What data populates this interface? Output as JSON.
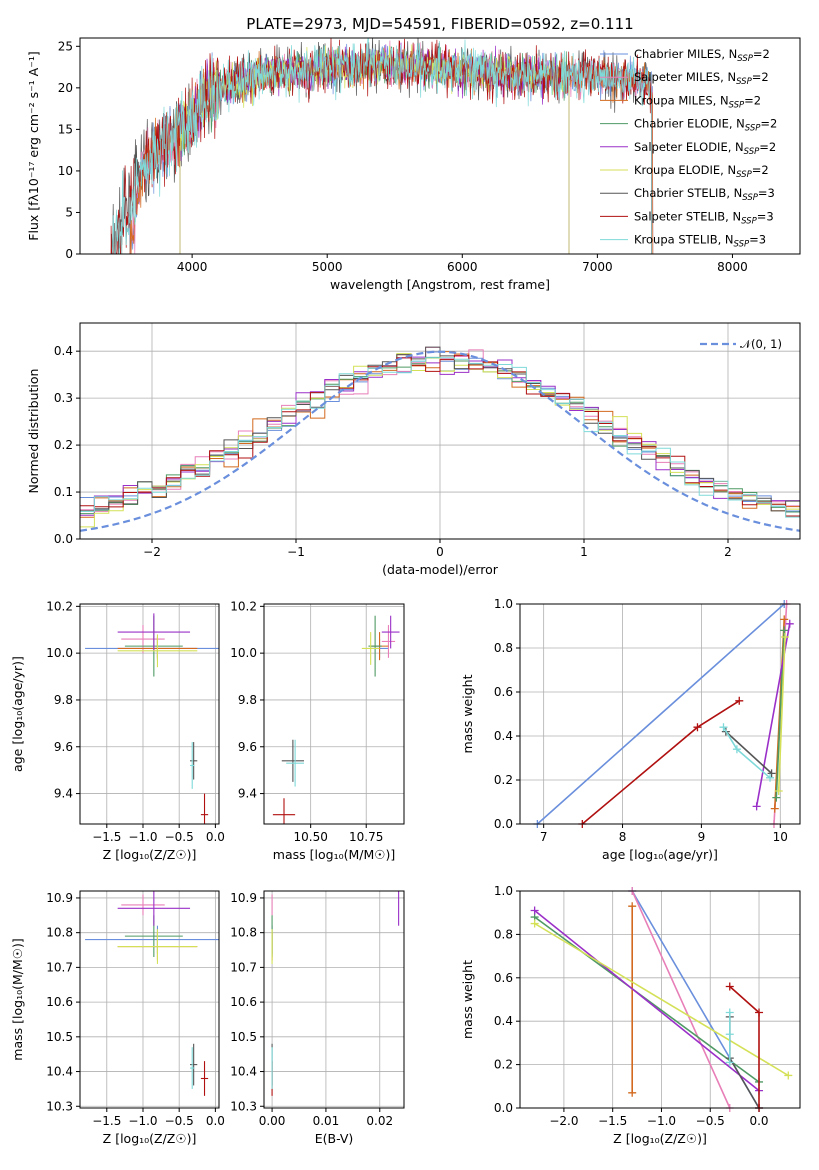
{
  "page_title": "PLATE=2973, MJD=54591, FIBERID=0592, z=0.111",
  "colors": {
    "Chabrier MILES": "#6a8fdc",
    "Salpeter MILES": "#e87fb8",
    "Kroupa MILES": "#d2691e",
    "Chabrier ELODIE": "#4f9a64",
    "Salpeter ELODIE": "#9b30c8",
    "Kroupa ELODIE": "#d4e157",
    "Chabrier STELIB": "#555555",
    "Salpeter STELIB": "#b01010",
    "Kroupa STELIB": "#7fd9d9"
  },
  "chart_data": [
    {
      "id": "spectrum",
      "type": "line",
      "title": "PLATE=2973, MJD=54591, FIBERID=0592, z=0.111",
      "xlabel": "wavelength [Angstrom, rest frame]",
      "ylabel": "Flux [fλ10⁻¹⁷ erg cm⁻² s⁻¹ A⁻¹]",
      "xlim": [
        3170,
        8500
      ],
      "ylim": [
        0,
        26
      ],
      "xticks": [
        4000,
        5000,
        6000,
        7000,
        8000
      ],
      "yticks": [
        0,
        5,
        10,
        15,
        20,
        25
      ],
      "grid": false,
      "legend": "top-right",
      "legend_entries": [
        "Chabrier MILES, N_SSP=2",
        "Salpeter MILES, N_SSP=2",
        "Kroupa MILES, N_SSP=2",
        "Chabrier ELODIE, N_SSP=2",
        "Salpeter ELODIE, N_SSP=2",
        "Kroupa ELODIE, N_SSP=2",
        "Chabrier STELIB, N_SSP=3",
        "Salpeter STELIB, N_SSP=3",
        "Kroupa STELIB, N_SSP=3"
      ],
      "x": [
        3630,
        3700,
        3800,
        3900,
        4000,
        4100,
        4300,
        4500,
        4700,
        5000,
        5200,
        5400,
        5600,
        5800,
        6000,
        6200,
        6400,
        6600,
        6800,
        7000,
        7200,
        7400
      ],
      "y": [
        10.5,
        11.5,
        13.5,
        14.5,
        16.5,
        19.0,
        20.5,
        21.5,
        22.0,
        22.5,
        22.5,
        23.0,
        22.5,
        22.5,
        22.0,
        22.0,
        21.5,
        21.5,
        21.5,
        21.5,
        21.0,
        20.5
      ],
      "model_ranges": {
        "Chabrier MILES": [
          3540,
          7410
        ],
        "Salpeter MILES": [
          3540,
          7410
        ],
        "Kroupa MILES": [
          3540,
          7410
        ],
        "Chabrier ELODIE": [
          3910,
          6790
        ],
        "Salpeter ELODIE": [
          3910,
          6790
        ],
        "Kroupa ELODIE": [
          3910,
          6790
        ],
        "Chabrier STELIB": [
          3400,
          7400
        ],
        "Salpeter STELIB": [
          3400,
          7400
        ],
        "Kroupa STELIB": [
          3400,
          7400
        ]
      }
    },
    {
      "id": "residuals",
      "type": "histogram",
      "xlabel": "(data-model)/error",
      "ylabel": "Normed distribution",
      "xlim": [
        -2.5,
        2.5
      ],
      "ylim": [
        0,
        0.46
      ],
      "xticks": [
        -2,
        -1,
        0,
        1,
        2
      ],
      "yticks": [
        0.0,
        0.1,
        0.2,
        0.3,
        0.4
      ],
      "grid": true,
      "legend": "top-right",
      "reference_curve": "𝒩(0, 1)",
      "bin_width": 0.1
    },
    {
      "id": "age-vs-Z",
      "type": "errorbar",
      "xlabel": "Z [log₁₀(Z/Z☉)]",
      "ylabel": "age  [log₁₀(age/yr)]",
      "xlim": [
        -1.87,
        0.05
      ],
      "ylim": [
        9.27,
        10.21
      ],
      "xticks": [
        -1.5,
        -1.0,
        -0.5,
        0.0
      ],
      "xticklabels": [
        "−1.5",
        "−1.0",
        "−0.5",
        "0.0"
      ],
      "yticks": [
        9.4,
        9.6,
        9.8,
        10.0,
        10.2
      ],
      "points": [
        {
          "model": "Chabrier MILES",
          "x": -0.8,
          "xerr": 1.0,
          "y": 10.02,
          "yerr": 0.04
        },
        {
          "model": "Salpeter MILES",
          "x": -1.0,
          "xerr": 0.3,
          "y": 10.06,
          "yerr": 0.06
        },
        {
          "model": "Kroupa MILES",
          "x": -0.8,
          "xerr": 0.55,
          "y": 10.02,
          "yerr": 0.05
        },
        {
          "model": "Chabrier ELODIE",
          "x": -0.85,
          "xerr": 0.4,
          "y": 10.03,
          "yerr": 0.13
        },
        {
          "model": "Salpeter ELODIE",
          "x": -0.85,
          "xerr": 0.5,
          "y": 10.09,
          "yerr": 0.08
        },
        {
          "model": "Kroupa ELODIE",
          "x": -0.8,
          "xerr": 0.55,
          "y": 10.01,
          "yerr": 0.07
        },
        {
          "model": "Chabrier STELIB",
          "x": -0.3,
          "xerr": 0.05,
          "y": 9.54,
          "yerr": 0.08
        },
        {
          "model": "Salpeter STELIB",
          "x": -0.15,
          "xerr": 0.05,
          "y": 9.31,
          "yerr": 0.09
        },
        {
          "model": "Kroupa STELIB",
          "x": -0.32,
          "xerr": 0.03,
          "y": 9.52,
          "yerr": 0.1
        }
      ]
    },
    {
      "id": "age-vs-mass",
      "type": "errorbar",
      "xlabel": "mass [log₁₀(M/M☉)]",
      "ylabel": "",
      "xlim": [
        10.29,
        10.92
      ],
      "ylim": [
        9.27,
        10.21
      ],
      "xticks": [
        10.5,
        10.75
      ],
      "xticklabels": [
        "10.50",
        "10.75"
      ],
      "yticks": [
        9.4,
        9.6,
        9.8,
        10.0,
        10.2
      ],
      "points": [
        {
          "model": "Chabrier MILES",
          "x": 10.81,
          "xerr": 0.04,
          "y": 10.02,
          "yerr": 0.04
        },
        {
          "model": "Salpeter MILES",
          "x": 10.85,
          "xerr": 0.03,
          "y": 10.05,
          "yerr": 0.07
        },
        {
          "model": "Kroupa MILES",
          "x": 10.81,
          "xerr": 0.04,
          "y": 10.03,
          "yerr": 0.06
        },
        {
          "model": "Chabrier ELODIE",
          "x": 10.79,
          "xerr": 0.03,
          "y": 10.03,
          "yerr": 0.13
        },
        {
          "model": "Salpeter ELODIE",
          "x": 10.86,
          "xerr": 0.04,
          "y": 10.09,
          "yerr": 0.07
        },
        {
          "model": "Kroupa ELODIE",
          "x": 10.77,
          "xerr": 0.04,
          "y": 10.02,
          "yerr": 0.07
        },
        {
          "model": "Chabrier STELIB",
          "x": 10.42,
          "xerr": 0.05,
          "y": 9.54,
          "yerr": 0.09
        },
        {
          "model": "Salpeter STELIB",
          "x": 10.38,
          "xerr": 0.05,
          "y": 9.31,
          "yerr": 0.07
        },
        {
          "model": "Kroupa STELIB",
          "x": 10.43,
          "xerr": 0.04,
          "y": 9.53,
          "yerr": 0.1
        }
      ]
    },
    {
      "id": "massweight-vs-age",
      "type": "line",
      "xlabel": "age  [log₁₀(age/yr)]",
      "ylabel": "mass weight",
      "xlim": [
        6.7,
        10.25
      ],
      "ylim": [
        0,
        1
      ],
      "xticks": [
        7,
        8,
        9,
        10
      ],
      "yticks": [
        0.0,
        0.2,
        0.4,
        0.6,
        0.8,
        1.0
      ],
      "series": [
        {
          "model": "Chabrier MILES",
          "x": [
            6.92,
            10.05
          ],
          "y": [
            0.0,
            1.0
          ]
        },
        {
          "model": "Salpeter MILES",
          "x": [
            9.92,
            10.08
          ],
          "y": [
            0.0,
            1.0
          ]
        },
        {
          "model": "Kroupa MILES",
          "x": [
            9.93,
            10.05
          ],
          "y": [
            0.07,
            0.93
          ]
        },
        {
          "model": "Chabrier ELODIE",
          "x": [
            9.95,
            10.05
          ],
          "y": [
            0.12,
            0.88
          ]
        },
        {
          "model": "Salpeter ELODIE",
          "x": [
            9.7,
            10.12
          ],
          "y": [
            0.08,
            0.91
          ]
        },
        {
          "model": "Kroupa ELODIE",
          "x": [
            9.98,
            10.06
          ],
          "y": [
            0.15,
            0.85
          ]
        },
        {
          "model": "Chabrier STELIB",
          "x": [
            9.31,
            9.89
          ],
          "y": [
            0.42,
            0.23
          ]
        },
        {
          "model": "Salpeter STELIB",
          "x": [
            7.49,
            8.95,
            9.48
          ],
          "y": [
            0.0,
            0.44,
            0.56
          ]
        },
        {
          "model": "Kroupa STELIB",
          "x": [
            9.28,
            9.45,
            9.87
          ],
          "y": [
            0.44,
            0.34,
            0.21
          ]
        }
      ]
    },
    {
      "id": "mass-vs-Z",
      "type": "errorbar",
      "xlabel": "Z [log₁₀(Z/Z☉)]",
      "ylabel": "mass [log₁₀(M/M☉)]",
      "xlim": [
        -1.87,
        0.05
      ],
      "ylim": [
        10.295,
        10.92
      ],
      "xticks": [
        -1.5,
        -1.0,
        -0.5,
        0.0
      ],
      "xticklabels": [
        "−1.5",
        "−1.0",
        "−0.5",
        "0.0"
      ],
      "yticks": [
        10.3,
        10.4,
        10.5,
        10.6,
        10.7,
        10.8,
        10.9
      ],
      "points": [
        {
          "model": "Chabrier MILES",
          "x": -0.8,
          "xerr": 1.0,
          "y": 10.78,
          "yerr": 0.04
        },
        {
          "model": "Salpeter MILES",
          "x": -1.0,
          "xerr": 0.3,
          "y": 10.88,
          "yerr": 0.03
        },
        {
          "model": "Kroupa MILES",
          "x": -0.8,
          "xerr": 0.55,
          "y": 10.76,
          "yerr": 0.04
        },
        {
          "model": "Chabrier ELODIE",
          "x": -0.85,
          "xerr": 0.4,
          "y": 10.79,
          "yerr": 0.06
        },
        {
          "model": "Salpeter ELODIE",
          "x": -0.85,
          "xerr": 0.5,
          "y": 10.87,
          "yerr": 0.05
        },
        {
          "model": "Kroupa ELODIE",
          "x": -0.8,
          "xerr": 0.55,
          "y": 10.76,
          "yerr": 0.05
        },
        {
          "model": "Chabrier STELIB",
          "x": -0.3,
          "xerr": 0.05,
          "y": 10.42,
          "yerr": 0.06
        },
        {
          "model": "Salpeter STELIB",
          "x": -0.15,
          "xerr": 0.05,
          "y": 10.38,
          "yerr": 0.05
        },
        {
          "model": "Kroupa STELIB",
          "x": -0.32,
          "xerr": 0.03,
          "y": 10.41,
          "yerr": 0.06
        }
      ]
    },
    {
      "id": "mass-vs-EBV",
      "type": "errorbar",
      "xlabel": "E(B-V)",
      "ylabel": "",
      "xlim": [
        -0.0015,
        0.0245
      ],
      "ylim": [
        10.295,
        10.92
      ],
      "xticks": [
        0.0,
        0.01,
        0.02
      ],
      "xticklabels": [
        "0.00",
        "0.01",
        "0.02"
      ],
      "yticks": [
        10.3,
        10.4,
        10.5,
        10.6,
        10.7,
        10.8,
        10.9
      ],
      "points": [
        {
          "model": "Chabrier MILES",
          "x": 0.0,
          "xerr": 0,
          "y": 10.78,
          "yerr": 0.04
        },
        {
          "model": "Salpeter MILES",
          "x": 0.0,
          "xerr": 0,
          "y": 10.88,
          "yerr": 0.03
        },
        {
          "model": "Kroupa MILES",
          "x": 0.0,
          "xerr": 0,
          "y": 10.76,
          "yerr": 0.04
        },
        {
          "model": "Chabrier ELODIE",
          "x": 0.0,
          "xerr": 0,
          "y": 10.79,
          "yerr": 0.06
        },
        {
          "model": "Salpeter ELODIE",
          "x": 0.0235,
          "xerr": 0,
          "y": 10.87,
          "yerr": 0.05
        },
        {
          "model": "Kroupa ELODIE",
          "x": 0.0,
          "xerr": 0,
          "y": 10.76,
          "yerr": 0.05
        },
        {
          "model": "Chabrier STELIB",
          "x": 0.0,
          "xerr": 0,
          "y": 10.42,
          "yerr": 0.06
        },
        {
          "model": "Salpeter STELIB",
          "x": 0.0,
          "xerr": 0,
          "y": 10.38,
          "yerr": 0.05
        },
        {
          "model": "Kroupa STELIB",
          "x": 0.0,
          "xerr": 0,
          "y": 10.41,
          "yerr": 0.06
        }
      ]
    },
    {
      "id": "massweight-vs-Z",
      "type": "line",
      "xlabel": "Z [log₁₀(Z/Z☉)]",
      "ylabel": "mass weight",
      "xlim": [
        -2.45,
        0.42
      ],
      "ylim": [
        0,
        1
      ],
      "xticks": [
        -2.0,
        -1.5,
        -1.0,
        -0.5,
        0.0
      ],
      "xticklabels": [
        "−2.0",
        "−1.5",
        "−1.0",
        "−0.5",
        "0.0"
      ],
      "yticks": [
        0.0,
        0.2,
        0.4,
        0.6,
        0.8,
        1.0
      ],
      "series": [
        {
          "model": "Chabrier MILES",
          "x": [
            -1.3,
            0.0
          ],
          "y": [
            1.0,
            0.0
          ]
        },
        {
          "model": "Salpeter MILES",
          "x": [
            -1.3,
            -0.3
          ],
          "y": [
            1.0,
            0.0
          ]
        },
        {
          "model": "Kroupa MILES",
          "x": [
            -1.3,
            -1.3
          ],
          "y": [
            0.07,
            0.93
          ]
        },
        {
          "model": "Chabrier ELODIE",
          "x": [
            -2.3,
            0.0
          ],
          "y": [
            0.88,
            0.12
          ]
        },
        {
          "model": "Salpeter ELODIE",
          "x": [
            -2.3,
            0.0
          ],
          "y": [
            0.91,
            0.08
          ]
        },
        {
          "model": "Kroupa ELODIE",
          "x": [
            -2.3,
            0.3
          ],
          "y": [
            0.85,
            0.15
          ]
        },
        {
          "model": "Chabrier STELIB",
          "x": [
            -0.3,
            -0.3,
            0.0
          ],
          "y": [
            0.42,
            0.23,
            0.0
          ]
        },
        {
          "model": "Salpeter STELIB",
          "x": [
            -0.3,
            0.0,
            0.0
          ],
          "y": [
            0.56,
            0.44,
            0.0
          ]
        },
        {
          "model": "Kroupa STELIB",
          "x": [
            -0.3,
            -0.3,
            -0.3
          ],
          "y": [
            0.44,
            0.34,
            0.21
          ]
        }
      ]
    }
  ]
}
